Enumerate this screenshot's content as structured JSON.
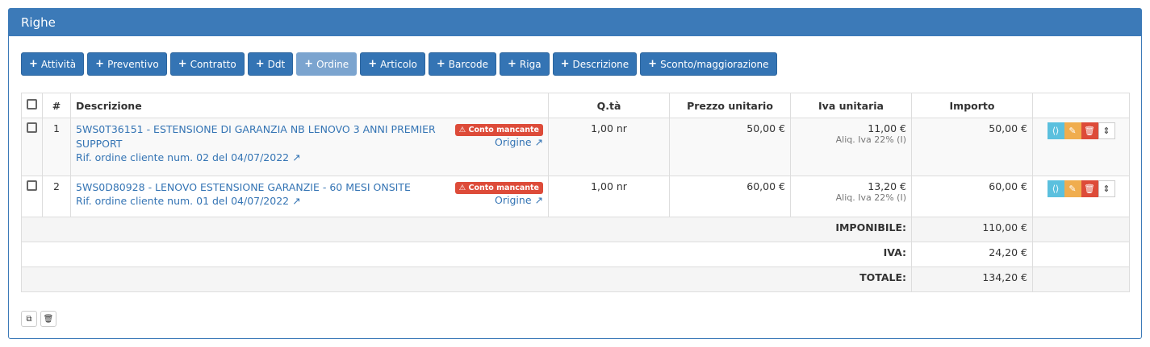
{
  "panel": {
    "title": "Righe"
  },
  "buttons": [
    {
      "label": "Attività"
    },
    {
      "label": "Preventivo"
    },
    {
      "label": "Contratto"
    },
    {
      "label": "Ddt"
    },
    {
      "label": "Ordine",
      "disabled": true
    },
    {
      "label": "Articolo"
    },
    {
      "label": "Barcode"
    },
    {
      "label": "Riga"
    },
    {
      "label": "Descrizione"
    },
    {
      "label": "Sconto/maggiorazione"
    }
  ],
  "columns": [
    "#",
    "Descrizione",
    "Q.tà",
    "Prezzo unitario",
    "Iva unitaria",
    "Importo"
  ],
  "rows": [
    {
      "n": "1",
      "desc": "5WS0T36151 - ESTENSIONE DI GARANZIA NB LENOVO 3 ANNI PREMIER SUPPORT",
      "ref": "Rif. ordine cliente num. 02 del 04/07/2022",
      "badge": "Conto mancante",
      "origin": "Origine",
      "qty": "1,00 nr",
      "price": "50,00 €",
      "iva": "11,00 €",
      "aliq": "Aliq. Iva 22% (I)",
      "amount": "50,00 €"
    },
    {
      "n": "2",
      "desc": "5WS0D80928 - LENOVO ESTENSIONE GARANZIE - 60 MESI ONSITE",
      "ref": "Rif. ordine cliente num. 01 del 04/07/2022",
      "badge": "Conto mancante",
      "origin": "Origine",
      "qty": "1,00 nr",
      "price": "60,00 €",
      "iva": "13,20 €",
      "aliq": "Aliq. Iva 22% (I)",
      "amount": "60,00 €"
    }
  ],
  "totals": [
    {
      "label": "IMPONIBILE:",
      "value": "110,00 €"
    },
    {
      "label": "IVA:",
      "value": "24,20 €"
    },
    {
      "label": "TOTALE:",
      "value": "134,20 €"
    }
  ],
  "colors": {
    "primary": "#3474b4",
    "info": "#5bc0de",
    "warning": "#f0ad4e",
    "danger": "#dd4b39"
  }
}
